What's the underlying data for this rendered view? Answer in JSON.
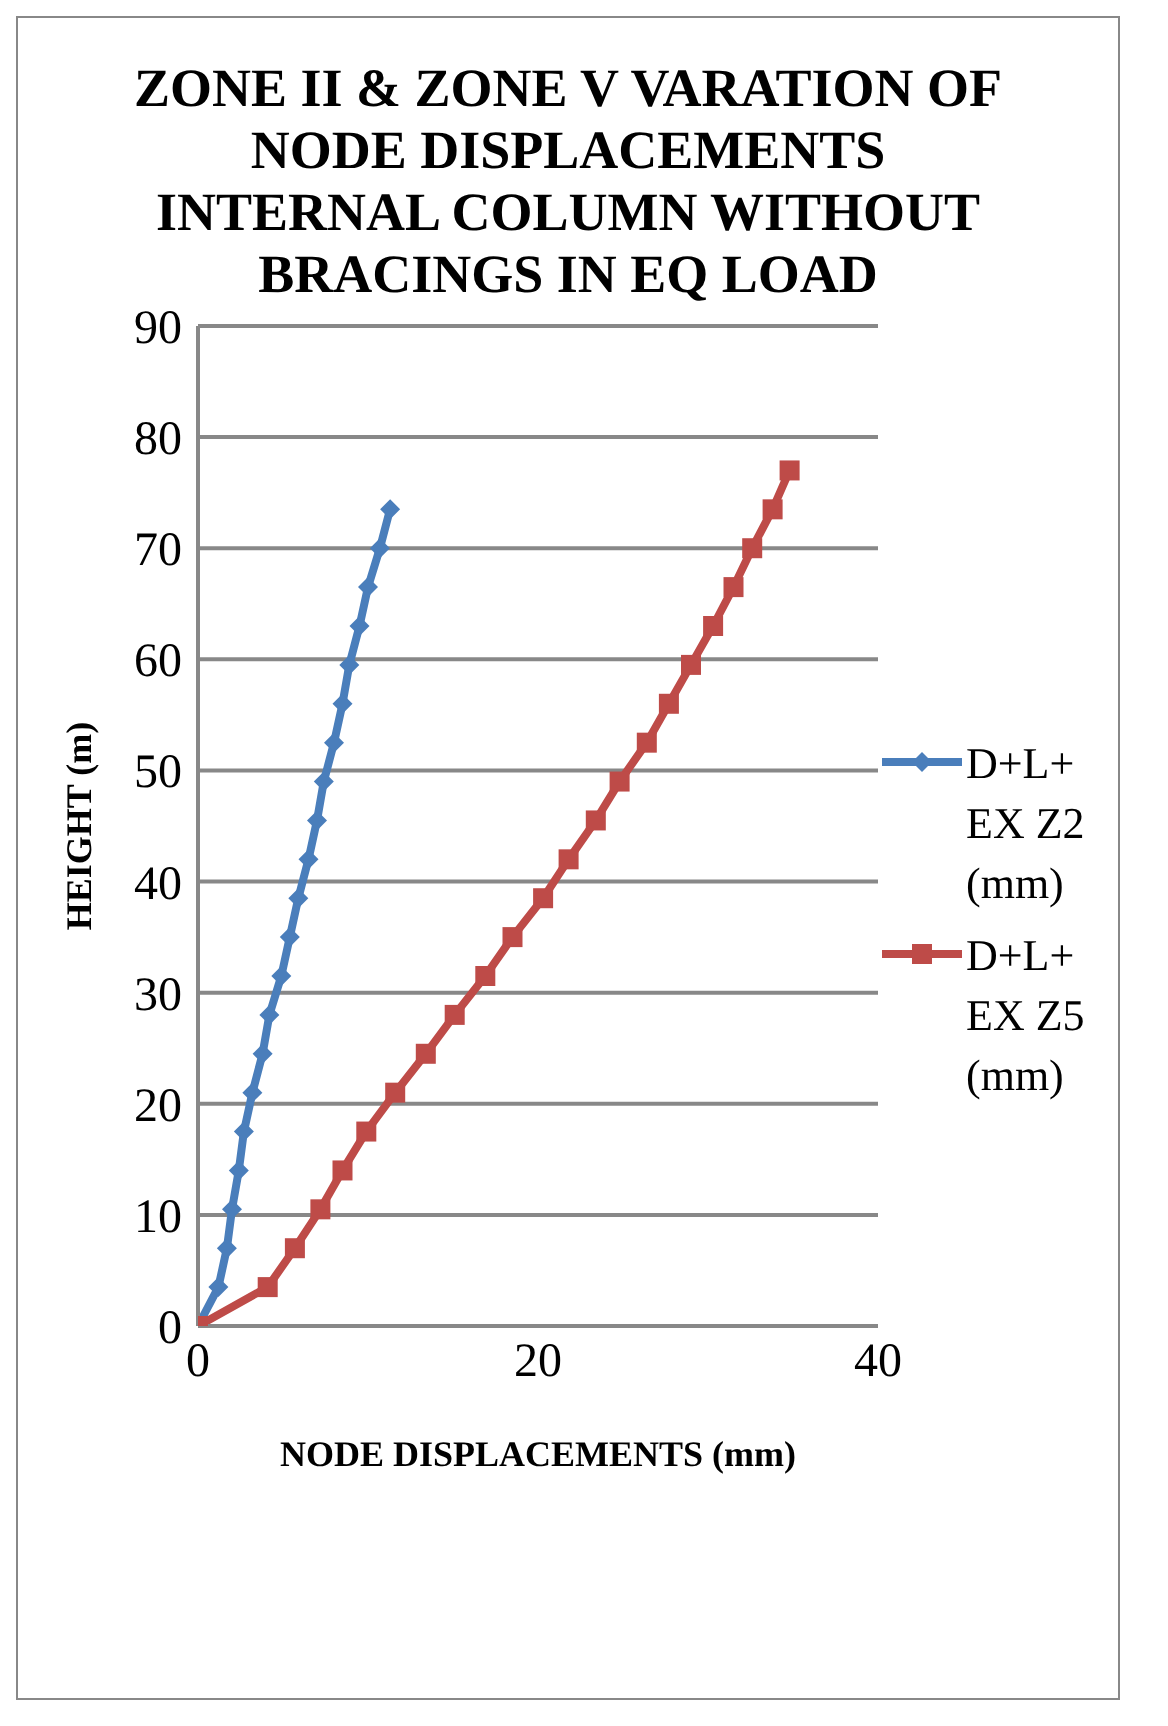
{
  "chart_data": {
    "type": "line",
    "title": "ZONE II & ZONE V VARATION OF NODE DISPLACEMENTS INTERNAL COLUMN WITHOUT BRACINGS IN EQ LOAD",
    "xlabel": "NODE DISPLACEMENTS (mm)",
    "ylabel": "HEIGHT (m)",
    "xlim": [
      0,
      40
    ],
    "xticks": [
      0,
      20,
      40
    ],
    "ylim": [
      0,
      90
    ],
    "yticks": [
      0,
      10,
      20,
      30,
      40,
      50,
      60,
      70,
      80,
      90
    ],
    "grid": "y",
    "legend": "right",
    "series": [
      {
        "name": "D+L+EX  Z2 (mm)",
        "color": "#4a7ebb",
        "marker": "diamond",
        "x": [
          0,
          1.2,
          1.7,
          2.0,
          2.4,
          2.7,
          3.2,
          3.8,
          4.2,
          4.9,
          5.4,
          5.9,
          6.5,
          7.0,
          7.4,
          8.0,
          8.5,
          8.9,
          9.5,
          10.0,
          10.7,
          11.3
        ],
        "values": [
          0,
          3.5,
          7,
          10.5,
          14,
          17.5,
          21,
          24.5,
          28,
          31.5,
          35,
          38.5,
          42,
          45.5,
          49,
          52.5,
          56,
          59.5,
          63,
          66.5,
          70,
          73.5
        ]
      },
      {
        "name": "D+L+EX  Z5 (mm)",
        "color": "#be4b48",
        "marker": "square",
        "x": [
          0,
          4.1,
          5.7,
          7.2,
          8.5,
          9.9,
          11.6,
          13.4,
          15.1,
          16.9,
          18.5,
          20.3,
          21.8,
          23.4,
          24.8,
          26.4,
          27.7,
          29.0,
          30.3,
          31.5,
          32.6,
          33.8,
          34.8
        ],
        "values": [
          0,
          3.5,
          7,
          10.5,
          14,
          17.5,
          21,
          24.5,
          28,
          31.5,
          35,
          38.5,
          42,
          45.5,
          49,
          52.5,
          56,
          59.5,
          63,
          66.5,
          70,
          73.5,
          77
        ]
      }
    ]
  }
}
